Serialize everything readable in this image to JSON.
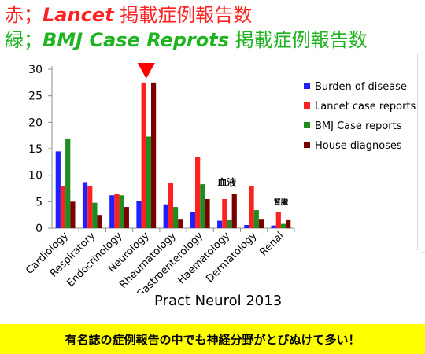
{
  "header": {
    "line1": {
      "prefix": "赤；",
      "journal": "Lancet",
      "suffix": " 掲載症例報告数"
    },
    "line2": {
      "prefix": "緑；",
      "journal": "BMJ Case Reprots",
      "suffix": " 掲載症例報告数"
    }
  },
  "citation": "Pract Neurol 2013",
  "footer": "有名誌の症例報告の中でも神経分野がとびぬけて多い！",
  "colors": {
    "burden": "#1f1fff",
    "lancet": "#ff2020",
    "bmj": "#1e8c1e",
    "house": "#7a0000",
    "marker": "#ff0000",
    "footer_bg": "#ffff00"
  },
  "chart_data": {
    "type": "bar",
    "categories": [
      "Cardiology",
      "Respiratory",
      "Endocrinology",
      "Neurology",
      "Rheumatology",
      "Gastroenterology",
      "Haematology",
      "Dermatology",
      "Renal"
    ],
    "series": [
      {
        "name": "Burden of disease",
        "values": [
          14.5,
          8.7,
          6.2,
          5.1,
          4.5,
          3.0,
          1.4,
          0.6,
          0.5
        ]
      },
      {
        "name": "Lancet case reports",
        "values": [
          8.0,
          8.0,
          6.5,
          27.5,
          8.5,
          13.5,
          5.5,
          8.0,
          3.0
        ]
      },
      {
        "name": "BMJ Case reports",
        "values": [
          16.8,
          4.8,
          6.2,
          17.3,
          4.0,
          8.3,
          1.5,
          3.4,
          0.8
        ]
      },
      {
        "name": "House diagnoses",
        "values": [
          5.0,
          2.5,
          4.0,
          27.5,
          1.6,
          5.5,
          6.5,
          1.6,
          1.5
        ]
      }
    ],
    "yticks": [
      "0",
      "5",
      "10",
      "15",
      "20",
      "25",
      "30"
    ],
    "ylim": [
      0,
      30
    ],
    "legend_position": "right",
    "grid": false,
    "annotations": [
      {
        "category": "Haematology",
        "text": "血液"
      },
      {
        "category": "Renal",
        "text": "腎臓"
      }
    ],
    "highlight": {
      "category": "Neurology",
      "marker": "down-triangle"
    }
  }
}
